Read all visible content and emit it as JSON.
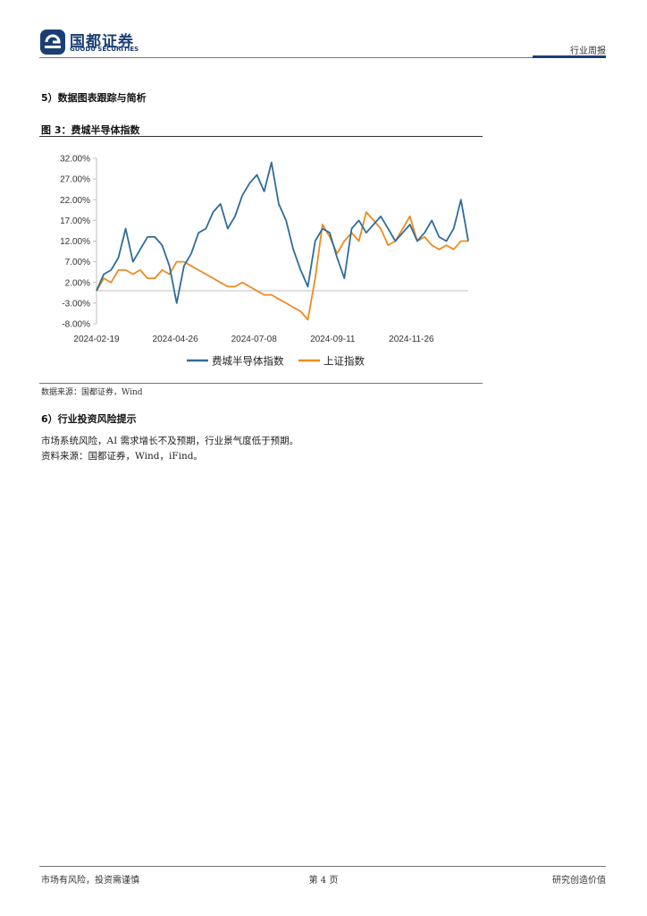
{
  "header": {
    "logo_cn": "国都证券",
    "logo_en": "GUODU SECURITIES",
    "report_type": "行业周报",
    "brand_color": "#1b3f74"
  },
  "section5": {
    "title": "5）数据图表跟踪与简析"
  },
  "figure": {
    "title": "图 3：费城半导体指数",
    "source": "数据来源：国都证券，Wind"
  },
  "chart_data": {
    "type": "line",
    "x_tick_labels": [
      "2024-02-19",
      "2024-04-26",
      "2024-07-08",
      "2024-09-11",
      "2024-11-26"
    ],
    "y_tick_labels": [
      "32.00%",
      "27.00%",
      "22.00%",
      "17.00%",
      "12.00%",
      "7.00%",
      "2.00%",
      "-3.00%",
      "-8.00%"
    ],
    "ylim": [
      -8,
      32
    ],
    "legend_position": "bottom",
    "grid": false,
    "x_index": [
      0,
      5,
      10,
      15,
      20,
      25,
      30,
      35,
      40,
      45,
      50,
      55,
      60,
      65,
      70,
      75,
      80,
      85,
      90,
      95,
      100,
      105,
      110,
      115,
      120,
      125,
      130,
      135,
      140,
      145,
      150,
      155,
      160,
      165,
      170,
      175,
      180,
      185,
      190,
      195,
      200,
      205,
      210,
      215,
      220,
      225,
      230,
      235,
      240,
      245,
      250,
      255
    ],
    "series": [
      {
        "name": "费城半导体指数",
        "color": "#2e6d99",
        "values": [
          0,
          4,
          5,
          8,
          15,
          7,
          10,
          13,
          13,
          11,
          6,
          -3,
          6,
          9,
          14,
          15,
          19,
          21,
          15,
          18,
          23,
          26,
          28,
          24,
          31,
          21,
          17,
          10,
          5,
          1,
          12,
          15,
          14,
          8,
          3,
          15,
          17,
          14,
          16,
          18,
          15,
          12,
          14,
          16,
          12,
          14,
          17,
          13,
          12,
          15,
          22,
          12
        ]
      },
      {
        "name": "上证指数",
        "color": "#ee8a22",
        "values": [
          0,
          3,
          2,
          5,
          5,
          4,
          5,
          3,
          3,
          5,
          4,
          7,
          7,
          6,
          5,
          4,
          3,
          2,
          1,
          1,
          2,
          1,
          0,
          -1,
          -1,
          -2,
          -3,
          -4,
          -5,
          -7,
          3,
          16,
          13,
          9,
          12,
          14,
          12,
          19,
          17,
          15,
          11,
          12,
          15,
          18,
          12,
          13,
          11,
          10,
          11,
          10,
          12,
          12
        ]
      }
    ]
  },
  "section6": {
    "title": "6）行业投资风险提示",
    "line1": "市场系统风险，AI 需求增长不及预期，行业景气度低于预期。",
    "line2": "资料来源：国都证券，Wind，iFind。"
  },
  "footer": {
    "left": "市场有风险，投资需谨慎",
    "page": "第 4 页",
    "right": "研究创造价值"
  }
}
